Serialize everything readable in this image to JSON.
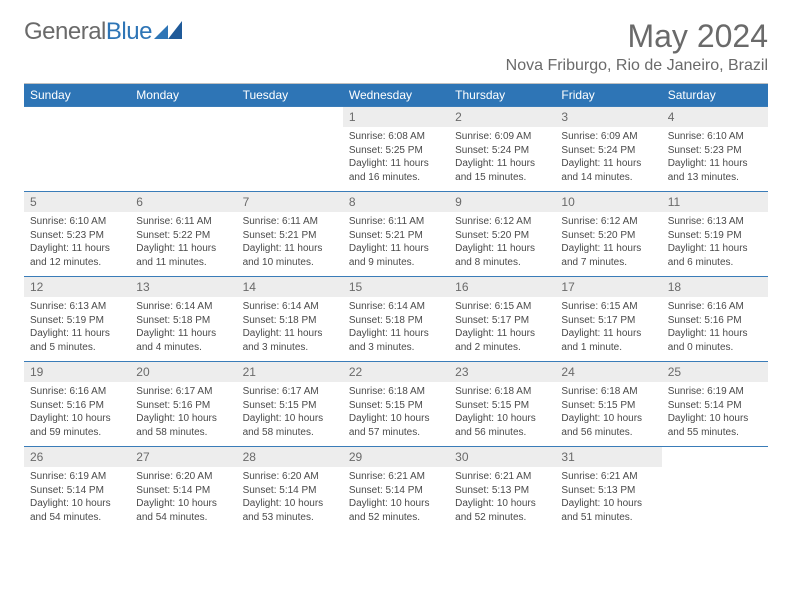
{
  "logo": {
    "text1": "General",
    "text2": "Blue"
  },
  "header": {
    "month": "May 2024",
    "location": "Nova Friburgo, Rio de Janeiro, Brazil"
  },
  "colors": {
    "header_bg": "#2e75b6",
    "header_text": "#ffffff",
    "date_bg": "#ededed",
    "text": "#4a4a4a",
    "border": "#3a7cb8"
  },
  "days": [
    "Sunday",
    "Monday",
    "Tuesday",
    "Wednesday",
    "Thursday",
    "Friday",
    "Saturday"
  ],
  "weeks": [
    [
      null,
      null,
      null,
      {
        "n": "1",
        "sr": "Sunrise: 6:08 AM",
        "ss": "Sunset: 5:25 PM",
        "dl1": "Daylight: 11 hours",
        "dl2": "and 16 minutes."
      },
      {
        "n": "2",
        "sr": "Sunrise: 6:09 AM",
        "ss": "Sunset: 5:24 PM",
        "dl1": "Daylight: 11 hours",
        "dl2": "and 15 minutes."
      },
      {
        "n": "3",
        "sr": "Sunrise: 6:09 AM",
        "ss": "Sunset: 5:24 PM",
        "dl1": "Daylight: 11 hours",
        "dl2": "and 14 minutes."
      },
      {
        "n": "4",
        "sr": "Sunrise: 6:10 AM",
        "ss": "Sunset: 5:23 PM",
        "dl1": "Daylight: 11 hours",
        "dl2": "and 13 minutes."
      }
    ],
    [
      {
        "n": "5",
        "sr": "Sunrise: 6:10 AM",
        "ss": "Sunset: 5:23 PM",
        "dl1": "Daylight: 11 hours",
        "dl2": "and 12 minutes."
      },
      {
        "n": "6",
        "sr": "Sunrise: 6:11 AM",
        "ss": "Sunset: 5:22 PM",
        "dl1": "Daylight: 11 hours",
        "dl2": "and 11 minutes."
      },
      {
        "n": "7",
        "sr": "Sunrise: 6:11 AM",
        "ss": "Sunset: 5:21 PM",
        "dl1": "Daylight: 11 hours",
        "dl2": "and 10 minutes."
      },
      {
        "n": "8",
        "sr": "Sunrise: 6:11 AM",
        "ss": "Sunset: 5:21 PM",
        "dl1": "Daylight: 11 hours",
        "dl2": "and 9 minutes."
      },
      {
        "n": "9",
        "sr": "Sunrise: 6:12 AM",
        "ss": "Sunset: 5:20 PM",
        "dl1": "Daylight: 11 hours",
        "dl2": "and 8 minutes."
      },
      {
        "n": "10",
        "sr": "Sunrise: 6:12 AM",
        "ss": "Sunset: 5:20 PM",
        "dl1": "Daylight: 11 hours",
        "dl2": "and 7 minutes."
      },
      {
        "n": "11",
        "sr": "Sunrise: 6:13 AM",
        "ss": "Sunset: 5:19 PM",
        "dl1": "Daylight: 11 hours",
        "dl2": "and 6 minutes."
      }
    ],
    [
      {
        "n": "12",
        "sr": "Sunrise: 6:13 AM",
        "ss": "Sunset: 5:19 PM",
        "dl1": "Daylight: 11 hours",
        "dl2": "and 5 minutes."
      },
      {
        "n": "13",
        "sr": "Sunrise: 6:14 AM",
        "ss": "Sunset: 5:18 PM",
        "dl1": "Daylight: 11 hours",
        "dl2": "and 4 minutes."
      },
      {
        "n": "14",
        "sr": "Sunrise: 6:14 AM",
        "ss": "Sunset: 5:18 PM",
        "dl1": "Daylight: 11 hours",
        "dl2": "and 3 minutes."
      },
      {
        "n": "15",
        "sr": "Sunrise: 6:14 AM",
        "ss": "Sunset: 5:18 PM",
        "dl1": "Daylight: 11 hours",
        "dl2": "and 3 minutes."
      },
      {
        "n": "16",
        "sr": "Sunrise: 6:15 AM",
        "ss": "Sunset: 5:17 PM",
        "dl1": "Daylight: 11 hours",
        "dl2": "and 2 minutes."
      },
      {
        "n": "17",
        "sr": "Sunrise: 6:15 AM",
        "ss": "Sunset: 5:17 PM",
        "dl1": "Daylight: 11 hours",
        "dl2": "and 1 minute."
      },
      {
        "n": "18",
        "sr": "Sunrise: 6:16 AM",
        "ss": "Sunset: 5:16 PM",
        "dl1": "Daylight: 11 hours",
        "dl2": "and 0 minutes."
      }
    ],
    [
      {
        "n": "19",
        "sr": "Sunrise: 6:16 AM",
        "ss": "Sunset: 5:16 PM",
        "dl1": "Daylight: 10 hours",
        "dl2": "and 59 minutes."
      },
      {
        "n": "20",
        "sr": "Sunrise: 6:17 AM",
        "ss": "Sunset: 5:16 PM",
        "dl1": "Daylight: 10 hours",
        "dl2": "and 58 minutes."
      },
      {
        "n": "21",
        "sr": "Sunrise: 6:17 AM",
        "ss": "Sunset: 5:15 PM",
        "dl1": "Daylight: 10 hours",
        "dl2": "and 58 minutes."
      },
      {
        "n": "22",
        "sr": "Sunrise: 6:18 AM",
        "ss": "Sunset: 5:15 PM",
        "dl1": "Daylight: 10 hours",
        "dl2": "and 57 minutes."
      },
      {
        "n": "23",
        "sr": "Sunrise: 6:18 AM",
        "ss": "Sunset: 5:15 PM",
        "dl1": "Daylight: 10 hours",
        "dl2": "and 56 minutes."
      },
      {
        "n": "24",
        "sr": "Sunrise: 6:18 AM",
        "ss": "Sunset: 5:15 PM",
        "dl1": "Daylight: 10 hours",
        "dl2": "and 56 minutes."
      },
      {
        "n": "25",
        "sr": "Sunrise: 6:19 AM",
        "ss": "Sunset: 5:14 PM",
        "dl1": "Daylight: 10 hours",
        "dl2": "and 55 minutes."
      }
    ],
    [
      {
        "n": "26",
        "sr": "Sunrise: 6:19 AM",
        "ss": "Sunset: 5:14 PM",
        "dl1": "Daylight: 10 hours",
        "dl2": "and 54 minutes."
      },
      {
        "n": "27",
        "sr": "Sunrise: 6:20 AM",
        "ss": "Sunset: 5:14 PM",
        "dl1": "Daylight: 10 hours",
        "dl2": "and 54 minutes."
      },
      {
        "n": "28",
        "sr": "Sunrise: 6:20 AM",
        "ss": "Sunset: 5:14 PM",
        "dl1": "Daylight: 10 hours",
        "dl2": "and 53 minutes."
      },
      {
        "n": "29",
        "sr": "Sunrise: 6:21 AM",
        "ss": "Sunset: 5:14 PM",
        "dl1": "Daylight: 10 hours",
        "dl2": "and 52 minutes."
      },
      {
        "n": "30",
        "sr": "Sunrise: 6:21 AM",
        "ss": "Sunset: 5:13 PM",
        "dl1": "Daylight: 10 hours",
        "dl2": "and 52 minutes."
      },
      {
        "n": "31",
        "sr": "Sunrise: 6:21 AM",
        "ss": "Sunset: 5:13 PM",
        "dl1": "Daylight: 10 hours",
        "dl2": "and 51 minutes."
      },
      null
    ]
  ]
}
